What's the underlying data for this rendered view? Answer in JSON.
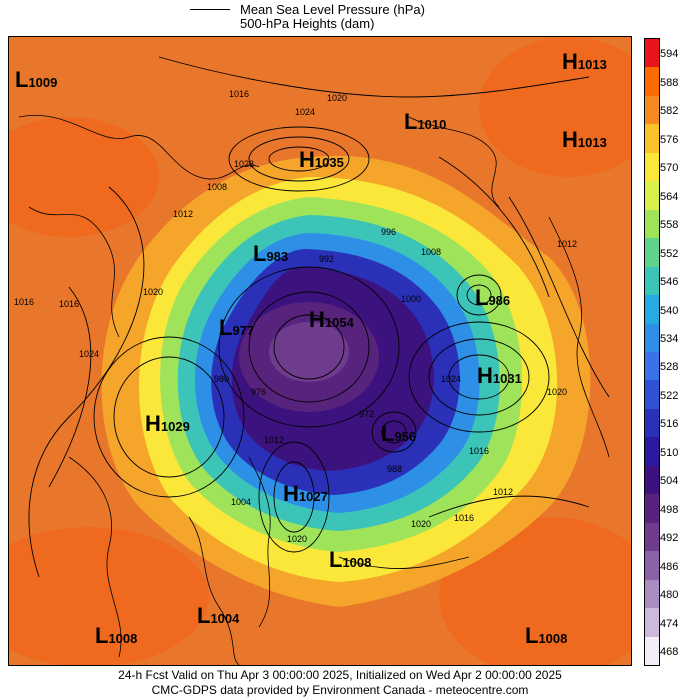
{
  "legend": {
    "mslp": "Mean Sea Level Pressure (hPa)",
    "heights": "500-hPa Heights (dam)"
  },
  "footer": {
    "line1": "24-h Fcst Valid on Thu Apr  3 00:00:00 2025, Initialized on Wed Apr  2 00:00:00 2025",
    "line2": "CMC-GDPS data provided by Environment Canada - meteocentre.com"
  },
  "colorbar": {
    "levels": [
      "594",
      "588",
      "582",
      "576",
      "570",
      "564",
      "558",
      "552",
      "546",
      "540",
      "534",
      "528",
      "522",
      "516",
      "510",
      "504",
      "498",
      "492",
      "486",
      "480",
      "474",
      "468"
    ],
    "colors": [
      "#e8141b",
      "#ff6a00",
      "#f58a20",
      "#f9c12a",
      "#fbe73a",
      "#d8ee4a",
      "#9ee35a",
      "#5fd38a",
      "#3dc4b8",
      "#27a9e1",
      "#2e8fe6",
      "#3a73e8",
      "#2f52d6",
      "#2a31b8",
      "#2b199e",
      "#3c137e",
      "#57237c",
      "#6f3c8d",
      "#8b61a7",
      "#a98cc1",
      "#cdb9db",
      "#f2edf6"
    ]
  },
  "centers": [
    {
      "type": "L",
      "value": "1009"
    },
    {
      "type": "H",
      "value": "1035"
    },
    {
      "type": "L",
      "value": "1010"
    },
    {
      "type": "H",
      "value": "1013"
    },
    {
      "type": "H",
      "value": "1013"
    },
    {
      "type": "L",
      "value": "983"
    },
    {
      "type": "L",
      "value": "977"
    },
    {
      "type": "H",
      "value": "1054"
    },
    {
      "type": "L",
      "value": "986"
    },
    {
      "type": "H",
      "value": "1031"
    },
    {
      "type": "H",
      "value": "1029"
    },
    {
      "type": "L",
      "value": "956"
    },
    {
      "type": "H",
      "value": "1027"
    },
    {
      "type": "L",
      "value": "1008"
    },
    {
      "type": "L",
      "value": "1004"
    },
    {
      "type": "L",
      "value": "1008"
    },
    {
      "type": "L",
      "value": "1008"
    }
  ],
  "isobar_labels": [
    "1016",
    "1020",
    "1024",
    "1028",
    "1008",
    "1012",
    "1016",
    "1020",
    "1024",
    "1012",
    "1016",
    "1020",
    "1024",
    "1016",
    "1012",
    "1008",
    "1020",
    "1016",
    "1012",
    "1020",
    "1004",
    "1000",
    "996",
    "992",
    "988",
    "980",
    "976",
    "972"
  ],
  "palette": {
    "background": "#e9772b",
    "border": "#000000"
  }
}
